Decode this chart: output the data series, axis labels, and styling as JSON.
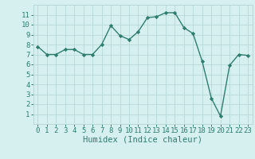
{
  "x": [
    0,
    1,
    2,
    3,
    4,
    5,
    6,
    7,
    8,
    9,
    10,
    11,
    12,
    13,
    14,
    15,
    16,
    17,
    18,
    19,
    20,
    21,
    22,
    23
  ],
  "y": [
    7.8,
    7.0,
    7.0,
    7.5,
    7.5,
    7.0,
    7.0,
    8.0,
    9.9,
    8.9,
    8.5,
    9.3,
    10.7,
    10.8,
    11.2,
    11.2,
    9.7,
    9.1,
    6.3,
    2.6,
    0.8,
    5.9,
    7.0,
    6.9
  ],
  "line_color": "#2e7d6e",
  "marker": "D",
  "marker_size": 2.2,
  "bg_color": "#d6f0f0",
  "grid_color": "#b8d8d8",
  "xlabel": "Humidex (Indice chaleur)",
  "xlim": [
    -0.5,
    23.5
  ],
  "ylim": [
    0,
    12
  ],
  "yticks": [
    1,
    2,
    3,
    4,
    5,
    6,
    7,
    8,
    9,
    10,
    11
  ],
  "xticks": [
    0,
    1,
    2,
    3,
    4,
    5,
    6,
    7,
    8,
    9,
    10,
    11,
    12,
    13,
    14,
    15,
    16,
    17,
    18,
    19,
    20,
    21,
    22,
    23
  ],
  "xlabel_fontsize": 7.5,
  "tick_fontsize": 6.5,
  "linewidth": 1.0
}
